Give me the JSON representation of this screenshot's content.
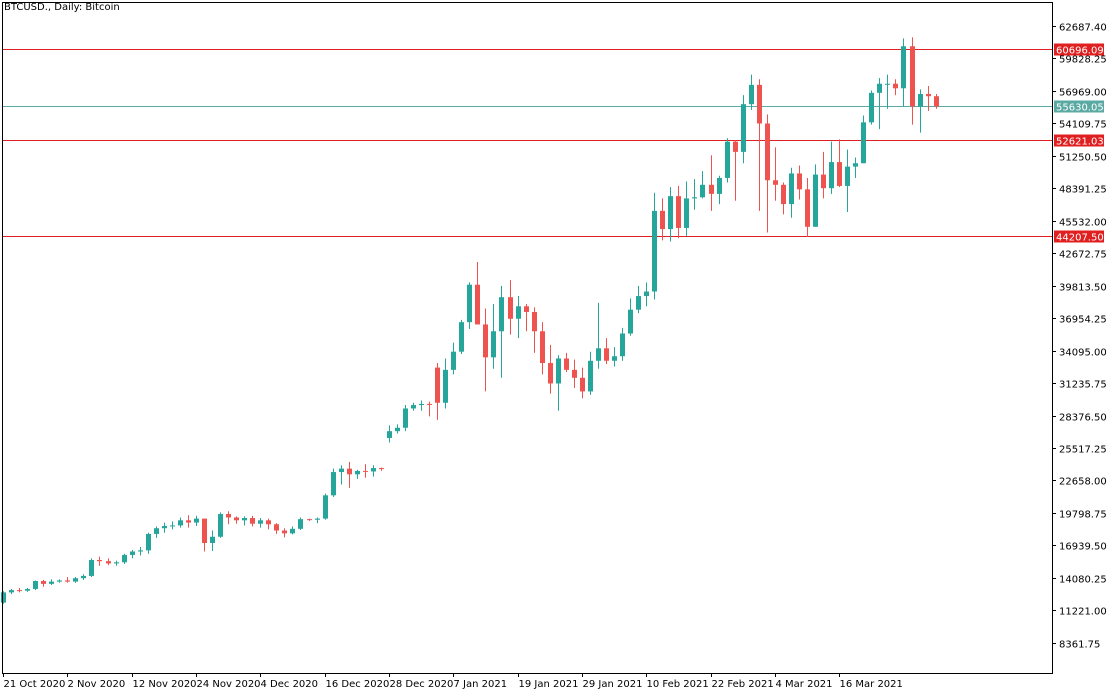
{
  "title": "BTCUSD., Daily:  Bitcoin",
  "colors": {
    "up": "#26a69a",
    "down": "#ef5350",
    "resistance_line": "#e02020",
    "price_line": "#5aa9a3",
    "frame": "#000000",
    "text": "#000000"
  },
  "chart_data": {
    "type": "candlestick",
    "symbol": "BTCUSD.",
    "timeframe": "Daily",
    "ylim": [
      5700,
      64800
    ],
    "y_ticks": [
      "62687.40",
      "59828.25",
      "56969.00",
      "54109.75",
      "51250.50",
      "48391.25",
      "45532.00",
      "42672.75",
      "39813.50",
      "36954.25",
      "34095.00",
      "31235.75",
      "28376.50",
      "25517.25",
      "22658.00",
      "19798.75",
      "16939.50",
      "14080.25",
      "11221.00",
      "8361.75"
    ],
    "x_ticks": [
      {
        "index": 0,
        "label": "21 Oct 2020"
      },
      {
        "index": 8,
        "label": "2 Nov 2020"
      },
      {
        "index": 16,
        "label": "12 Nov 2020"
      },
      {
        "index": 24,
        "label": "24 Nov 2020"
      },
      {
        "index": 32,
        "label": "4 Dec 2020"
      },
      {
        "index": 40,
        "label": "16 Dec 2020"
      },
      {
        "index": 48,
        "label": "28 Dec 2020"
      },
      {
        "index": 56,
        "label": "7 Jan 2021"
      },
      {
        "index": 64,
        "label": "19 Jan 2021"
      },
      {
        "index": 72,
        "label": "29 Jan 2021"
      },
      {
        "index": 80,
        "label": "10 Feb 2021"
      },
      {
        "index": 88,
        "label": "22 Feb 2021"
      },
      {
        "index": 96,
        "label": "4 Mar 2021"
      },
      {
        "index": 104,
        "label": "16 Mar 2021"
      }
    ],
    "horizontal_lines": [
      {
        "price": 60696.09,
        "label": "60696.09",
        "role": "resistance"
      },
      {
        "price": 55630.05,
        "label": "55630.05",
        "role": "current"
      },
      {
        "price": 52621.03,
        "label": "52621.03",
        "role": "resistance"
      },
      {
        "price": 44207.5,
        "label": "44207.50",
        "role": "resistance"
      }
    ],
    "candles": [
      [
        11900,
        12900,
        11800,
        12800
      ],
      [
        12800,
        13100,
        12650,
        13000
      ],
      [
        13000,
        13200,
        12800,
        12950
      ],
      [
        12950,
        13200,
        12850,
        13100
      ],
      [
        13100,
        13850,
        13000,
        13800
      ],
      [
        13800,
        13900,
        13300,
        13550
      ],
      [
        13550,
        13950,
        13450,
        13750
      ],
      [
        13750,
        13950,
        13650,
        13850
      ],
      [
        13850,
        14150,
        13650,
        13750
      ],
      [
        13750,
        14150,
        13650,
        14050
      ],
      [
        14050,
        14400,
        13900,
        14250
      ],
      [
        14250,
        15800,
        14150,
        15650
      ],
      [
        15650,
        15950,
        15150,
        15550
      ],
      [
        15550,
        15800,
        15200,
        15350
      ],
      [
        15350,
        15600,
        15150,
        15450
      ],
      [
        15450,
        16200,
        15300,
        16100
      ],
      [
        16100,
        16550,
        15800,
        16400
      ],
      [
        16400,
        16800,
        16050,
        16500
      ],
      [
        16500,
        18050,
        16200,
        17950
      ],
      [
        17950,
        18600,
        17600,
        18450
      ],
      [
        18450,
        18950,
        18050,
        18650
      ],
      [
        18650,
        19050,
        18350,
        18700
      ],
      [
        18700,
        19400,
        18500,
        19150
      ],
      [
        19150,
        19600,
        18500,
        18950
      ],
      [
        18950,
        19550,
        18650,
        19300
      ],
      [
        19300,
        19300,
        16400,
        17150
      ],
      [
        17150,
        18250,
        16450,
        17700
      ],
      [
        17700,
        19850,
        17600,
        19700
      ],
      [
        19700,
        19950,
        18800,
        19400
      ],
      [
        19400,
        19500,
        18850,
        19150
      ],
      [
        19150,
        19500,
        18700,
        19350
      ],
      [
        19350,
        19550,
        18600,
        18850
      ],
      [
        18850,
        19350,
        18500,
        19150
      ],
      [
        19150,
        19300,
        18350,
        18800
      ],
      [
        18800,
        18900,
        17950,
        18250
      ],
      [
        18250,
        18450,
        17650,
        18000
      ],
      [
        18000,
        18600,
        17900,
        18400
      ],
      [
        18400,
        19400,
        18300,
        19250
      ],
      [
        19250,
        19300,
        19100,
        19200
      ],
      [
        19200,
        19400,
        18900,
        19300
      ],
      [
        19300,
        21500,
        19200,
        21350
      ],
      [
        21350,
        23700,
        21200,
        23400
      ],
      [
        23400,
        24000,
        22300,
        23700
      ],
      [
        23700,
        24300,
        22000,
        23200
      ],
      [
        23200,
        23600,
        22800,
        23500
      ],
      [
        23500,
        24100,
        22900,
        23450
      ],
      [
        23450,
        24000,
        23000,
        23750
      ],
      [
        23750,
        23800,
        23500,
        23700
      ],
      [
        26400,
        27500,
        26000,
        27000
      ],
      [
        27000,
        27600,
        26800,
        27300
      ],
      [
        27300,
        29300,
        27000,
        29000
      ],
      [
        29000,
        29500,
        28800,
        29300
      ],
      [
        29300,
        29700,
        28800,
        29400
      ],
      [
        29400,
        29600,
        28300,
        29350
      ],
      [
        32600,
        33000,
        28000,
        29500
      ],
      [
        29500,
        33400,
        29000,
        32400
      ],
      [
        32400,
        34800,
        32000,
        34000
      ],
      [
        34000,
        36800,
        33800,
        36600
      ],
      [
        36600,
        40100,
        36000,
        39900
      ],
      [
        39900,
        41900,
        36800,
        36400
      ],
      [
        36400,
        37800,
        30500,
        33500
      ],
      [
        33500,
        38200,
        32500,
        35800
      ],
      [
        35800,
        39800,
        31700,
        38800
      ],
      [
        38800,
        40300,
        35500,
        36900
      ],
      [
        36900,
        38900,
        35200,
        38000
      ],
      [
        38000,
        38200,
        35800,
        37500
      ],
      [
        37500,
        37900,
        33900,
        35800
      ],
      [
        35800,
        36600,
        32000,
        33000
      ],
      [
        33000,
        34600,
        30300,
        31200
      ],
      [
        31200,
        33700,
        28800,
        33400
      ],
      [
        33400,
        33900,
        32200,
        32400
      ],
      [
        32400,
        33300,
        30800,
        31700
      ],
      [
        31700,
        32600,
        29900,
        30500
      ],
      [
        30500,
        34000,
        30200,
        33200
      ],
      [
        33200,
        38300,
        32500,
        34300
      ],
      [
        34300,
        35200,
        32900,
        33200
      ],
      [
        33200,
        34400,
        32700,
        33600
      ],
      [
        33600,
        36100,
        33200,
        35600
      ],
      [
        35600,
        38700,
        35400,
        37700
      ],
      [
        37700,
        39800,
        37400,
        38900
      ],
      [
        38900,
        40100,
        38000,
        39300
      ],
      [
        39300,
        48000,
        38600,
        46400
      ],
      [
        46400,
        47500,
        43800,
        44800
      ],
      [
        44800,
        48500,
        43700,
        47700
      ],
      [
        47700,
        48600,
        44000,
        44900
      ],
      [
        44900,
        49000,
        44200,
        47500
      ],
      [
        47500,
        49200,
        46500,
        47600
      ],
      [
        47600,
        49900,
        47500,
        48700
      ],
      [
        48700,
        51300,
        46400,
        47900
      ],
      [
        47900,
        49500,
        47000,
        49300
      ],
      [
        49300,
        52800,
        48900,
        52500
      ],
      [
        52500,
        52600,
        47300,
        51600
      ],
      [
        51600,
        56600,
        50600,
        55800
      ],
      [
        55800,
        58400,
        55300,
        57500
      ],
      [
        57500,
        58000,
        46400,
        54100
      ],
      [
        54100,
        54900,
        44500,
        49100
      ],
      [
        49100,
        52000,
        47300,
        48700
      ],
      [
        48700,
        48900,
        46100,
        47000
      ],
      [
        47000,
        50200,
        45800,
        49700
      ],
      [
        49700,
        50400,
        47400,
        48300
      ],
      [
        48300,
        49300,
        44100,
        45000
      ],
      [
        45000,
        50500,
        45000,
        49600
      ],
      [
        49600,
        51600,
        47500,
        48400
      ],
      [
        48400,
        52500,
        47900,
        50700
      ],
      [
        50700,
        52700,
        48500,
        48600
      ],
      [
        48600,
        51800,
        46300,
        50300
      ],
      [
        50300,
        51100,
        49300,
        50600
      ],
      [
        50600,
        54800,
        50600,
        54200
      ],
      [
        54200,
        57000,
        54000,
        56800
      ],
      [
        56800,
        58100,
        53600,
        57600
      ],
      [
        57600,
        58400,
        55400,
        57600
      ],
      [
        57600,
        58000,
        56600,
        57200
      ],
      [
        57200,
        61600,
        55600,
        60900
      ],
      [
        60900,
        61700,
        54000,
        55600
      ],
      [
        55600,
        57100,
        53300,
        56700
      ],
      [
        56700,
        57400,
        55200,
        56500
      ],
      [
        56500,
        56700,
        55400,
        55600
      ]
    ]
  }
}
